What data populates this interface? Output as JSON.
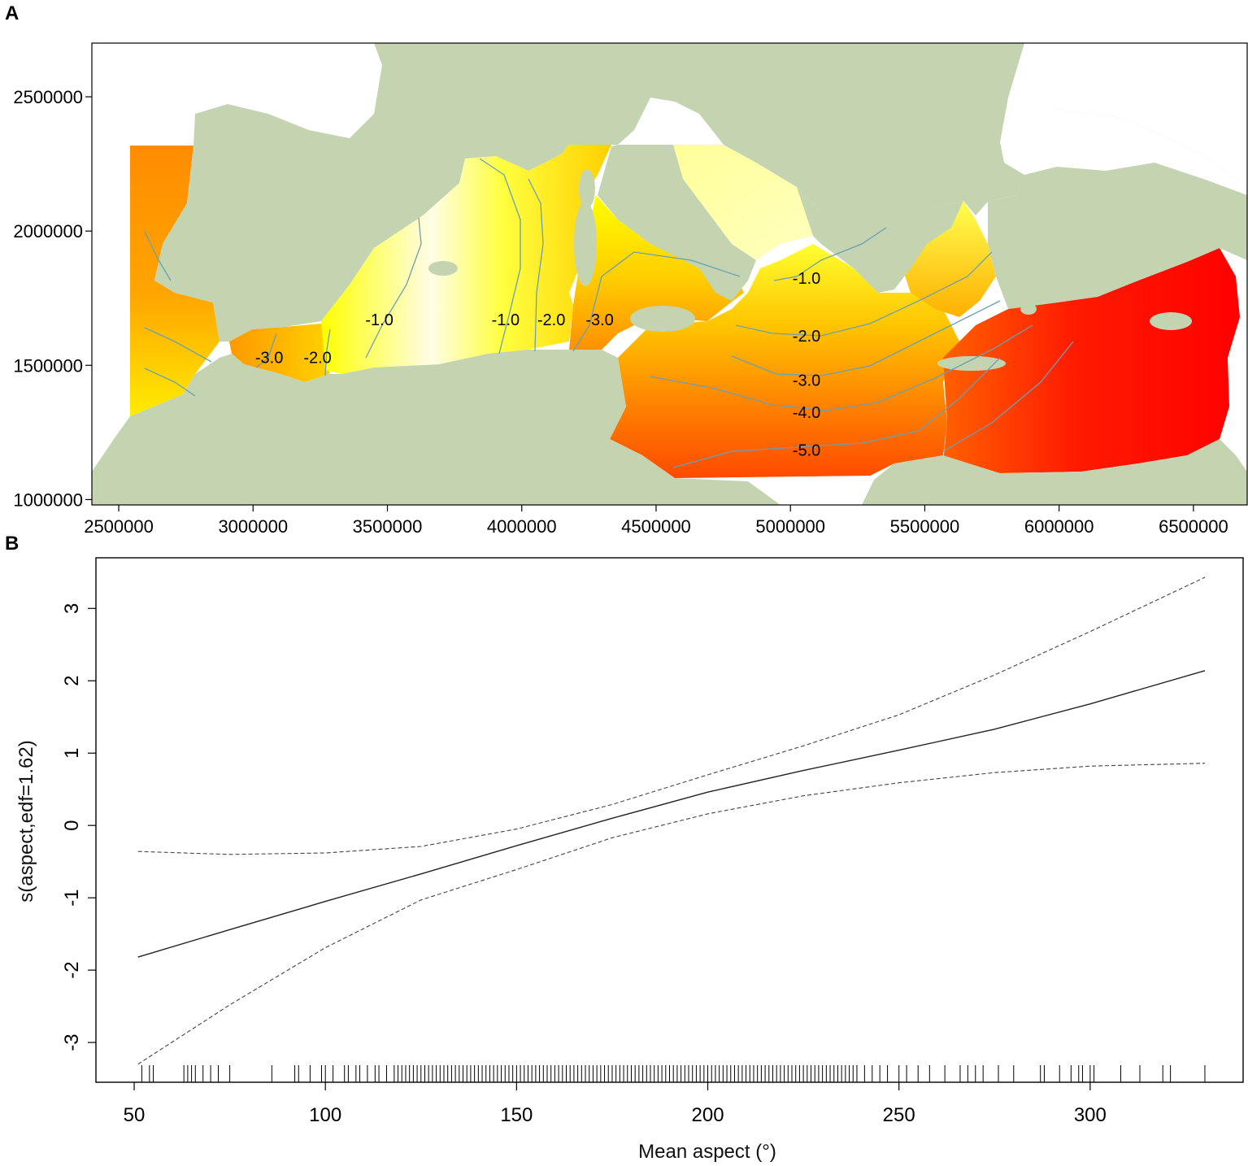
{
  "chart_data": [
    {
      "panel": "A",
      "type": "heatmap",
      "title": "",
      "xlabel": "",
      "ylabel": "",
      "x_ticks": [
        2500000,
        3000000,
        3500000,
        4000000,
        4500000,
        5000000,
        5500000,
        6000000,
        6500000
      ],
      "y_ticks": [
        1000000,
        1500000,
        2000000,
        2500000
      ],
      "xlim": [
        2400000,
        6700000
      ],
      "ylim": [
        980000,
        2700000
      ],
      "contour_labels": [
        {
          "text": "-3.0",
          "x": 3060000,
          "y": 1530000
        },
        {
          "text": "-2.0",
          "x": 3240000,
          "y": 1530000
        },
        {
          "text": "-1.0",
          "x": 3470000,
          "y": 1670000
        },
        {
          "text": "-1.0",
          "x": 3940000,
          "y": 1670000
        },
        {
          "text": "-2.0",
          "x": 4110000,
          "y": 1670000
        },
        {
          "text": "-3.0",
          "x": 4290000,
          "y": 1670000
        },
        {
          "text": "-1.0",
          "x": 5060000,
          "y": 1825000
        },
        {
          "text": "-2.0",
          "x": 5060000,
          "y": 1610000
        },
        {
          "text": "-3.0",
          "x": 5060000,
          "y": 1445000
        },
        {
          "text": "-4.0",
          "x": 5060000,
          "y": 1325000
        },
        {
          "text": "-5.0",
          "x": 5060000,
          "y": 1185000
        }
      ],
      "colors": {
        "land": "#c4d4b0",
        "sea_high": "#fffde6",
        "sea_mid": "#ffff00",
        "sea_low": "#ff8c00",
        "sea_min": "#ff0000",
        "contour": "#6a9fb5"
      }
    },
    {
      "panel": "B",
      "type": "line",
      "title": "",
      "xlabel": "Mean aspect (°)",
      "ylabel": "s(aspect,edf=1.62)",
      "xlim": [
        40,
        340
      ],
      "ylim": [
        -3.55,
        3.7
      ],
      "x_ticks": [
        50,
        100,
        150,
        200,
        250,
        300
      ],
      "y_ticks": [
        -3,
        -2,
        -1,
        0,
        1,
        2,
        3
      ],
      "x": [
        51,
        75,
        100,
        125,
        150,
        175,
        200,
        225,
        250,
        275,
        300,
        330
      ],
      "series": [
        {
          "style": "solid",
          "values": [
            -1.82,
            -1.44,
            -1.05,
            -0.67,
            -0.28,
            0.1,
            0.46,
            0.76,
            1.04,
            1.33,
            1.68,
            2.14
          ]
        },
        {
          "style": "dashed",
          "values": [
            -0.36,
            -0.4,
            -0.38,
            -0.29,
            -0.05,
            0.29,
            0.7,
            1.1,
            1.53,
            2.08,
            2.68,
            3.43
          ]
        },
        {
          "style": "dashed",
          "values": [
            -3.3,
            -2.48,
            -1.69,
            -1.03,
            -0.61,
            -0.17,
            0.16,
            0.41,
            0.59,
            0.73,
            0.82,
            0.86
          ]
        }
      ],
      "rug": [
        52,
        54,
        55,
        63,
        64,
        65,
        66,
        68,
        70,
        72,
        75,
        86,
        92,
        93,
        96,
        99,
        100,
        102,
        105,
        106,
        108,
        109,
        111,
        113,
        114,
        116,
        118,
        119,
        120,
        121,
        122,
        123,
        124,
        125,
        126,
        127,
        128,
        129,
        130,
        131,
        132,
        133,
        134,
        135,
        136,
        137,
        138,
        139,
        140,
        141,
        142,
        143,
        144,
        145,
        146,
        147,
        148,
        149,
        150,
        151,
        152,
        153,
        154,
        155,
        156,
        157,
        158,
        159,
        160,
        161,
        162,
        163,
        164,
        165,
        166,
        167,
        168,
        169,
        170,
        171,
        172,
        173,
        174,
        175,
        176,
        177,
        178,
        179,
        180,
        181,
        182,
        183,
        184,
        185,
        186,
        187,
        188,
        189,
        190,
        191,
        192,
        193,
        194,
        195,
        196,
        197,
        198,
        199,
        200,
        201,
        202,
        203,
        204,
        205,
        206,
        207,
        208,
        209,
        210,
        211,
        212,
        213,
        214,
        215,
        216,
        217,
        218,
        219,
        220,
        221,
        222,
        223,
        224,
        225,
        226,
        227,
        228,
        229,
        230,
        231,
        232,
        233,
        234,
        235,
        236,
        237,
        238,
        239,
        241,
        243,
        245,
        247,
        250,
        252,
        255,
        258,
        262,
        266,
        268,
        270,
        272,
        276,
        280,
        287,
        288,
        292,
        295,
        297,
        298,
        300,
        301,
        308,
        313,
        319,
        321,
        330
      ]
    }
  ]
}
